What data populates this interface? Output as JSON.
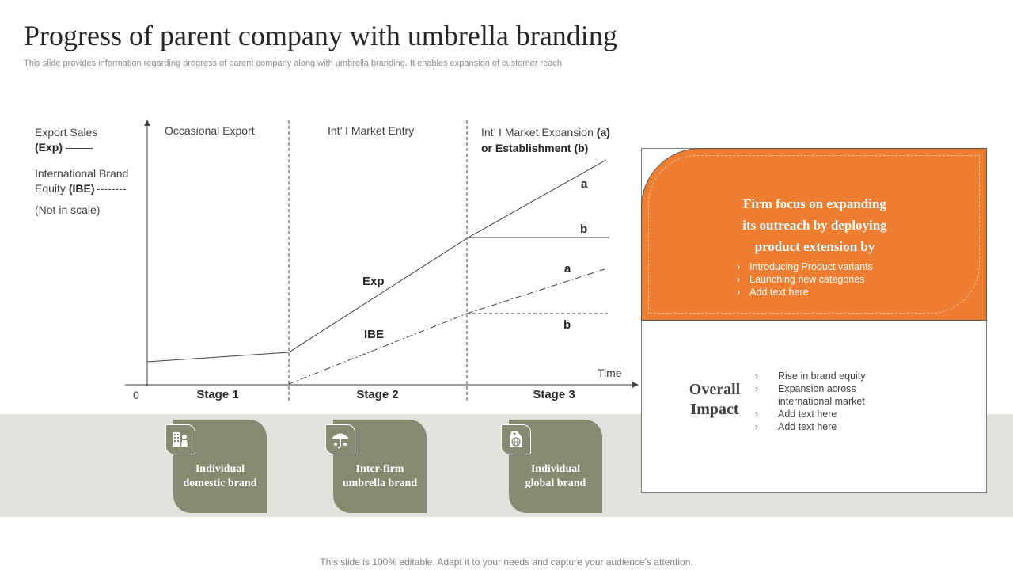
{
  "header": {
    "title": "Progress of parent company with umbrella branding",
    "subtitle": "This slide provides information regarding progress of parent company along with umbrella branding. It enables expansion of customer reach."
  },
  "legend": {
    "exp_label": "Export Sales",
    "exp_abbr": "(Exp)",
    "ibe_label_1": "International Brand",
    "ibe_label_2": "Equity",
    "ibe_abbr": "(IBE)",
    "note": "(Not in scale)"
  },
  "phases": {
    "p1": "Occasional Export",
    "p2": "Int’ I Market Entry",
    "p3_line1": "Int’ I Market Expansion",
    "p3_a": "(a)",
    "p3_line2": "or Establishment (b)"
  },
  "axis": {
    "origin": "0",
    "time": "Time"
  },
  "curves": {
    "exp": "Exp",
    "ibe": "IBE",
    "exp_a": "a",
    "exp_b": "b",
    "ibe_a": "a",
    "ibe_b": "b"
  },
  "stages": [
    "Stage 1",
    "Stage 2",
    "Stage 3"
  ],
  "cards": [
    {
      "icon": "building-icon",
      "line1": "Individual",
      "line2": "domestic brand"
    },
    {
      "icon": "umbrella-icon",
      "line1": "Inter-firm",
      "line2": "umbrella brand"
    },
    {
      "icon": "globe-tag-icon",
      "line1": "Individual",
      "line2": "global brand"
    }
  ],
  "focus": {
    "title_1": "Firm focus on expanding",
    "title_2": "its outreach by deploying",
    "title_3": "product extension by",
    "items": [
      "Introducing Product variants",
      "Launching new categories",
      "Add text here"
    ]
  },
  "impact": {
    "title_1": "Overall",
    "title_2": "Impact",
    "items": [
      "Rise in brand equity",
      "Expansion across international market",
      "Add text here",
      "Add text here"
    ]
  },
  "footer": "This slide is 100% editable. Adapt it to your needs and capture your audience’s attention.",
  "colors": {
    "accent": "#ed7d31",
    "olive": "#858b70",
    "band": "#e1e2dc"
  }
}
